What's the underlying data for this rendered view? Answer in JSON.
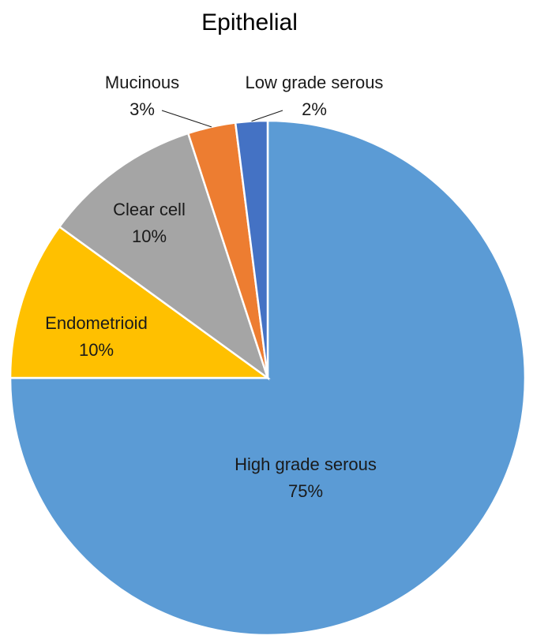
{
  "chart_data": {
    "type": "pie",
    "title": "Epithelial",
    "start_angle_deg": 0,
    "direction": "clockwise",
    "slices": [
      {
        "name": "High grade serous",
        "value": 75,
        "label": "75%",
        "color": "#5B9BD5"
      },
      {
        "name": "Endometrioid",
        "value": 10,
        "label": "10%",
        "color": "#FFC000"
      },
      {
        "name": "Clear cell",
        "value": 10,
        "label": "10%",
        "color": "#A5A5A5"
      },
      {
        "name": "Mucinous",
        "value": 3,
        "label": "3%",
        "color": "#ED7D31"
      },
      {
        "name": "Low grade serous",
        "value": 2,
        "label": "2%",
        "color": "#4472C4"
      }
    ],
    "legend": "none",
    "data_labels": "category name and percentage"
  }
}
